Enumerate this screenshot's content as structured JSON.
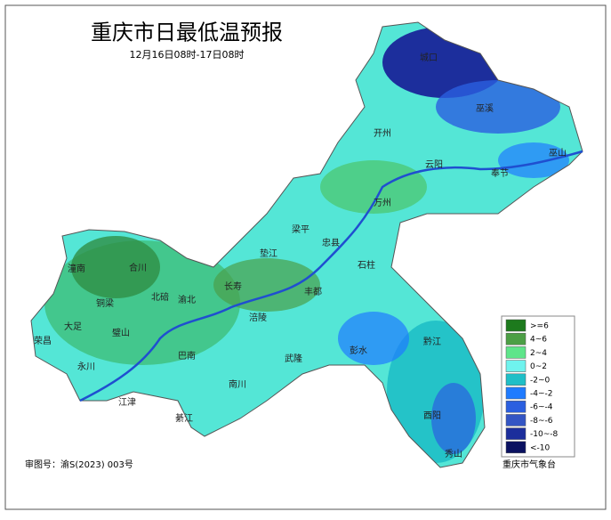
{
  "header": {
    "title": "重庆市日最低温预报",
    "subtitle": "12月16日08时-17日08时"
  },
  "places": [
    "城口",
    "巫溪",
    "开州",
    "云阳",
    "奉节",
    "巫山",
    "万州",
    "梁平",
    "忠县",
    "垫江",
    "石柱",
    "长寿",
    "丰都",
    "涪陵",
    "武隆",
    "彭水",
    "黔江",
    "酉阳",
    "秀山",
    "南川",
    "巴南",
    "江津",
    "綦江",
    "永川",
    "荣昌",
    "大足",
    "璧山",
    "铜梁",
    "潼南",
    "合川",
    "北碚",
    "渝北"
  ],
  "legend": [
    {
      "label": ">=6",
      "color": "#1d7a1d"
    },
    {
      "label": "4~6",
      "color": "#4c9f45"
    },
    {
      "label": "2~4",
      "color": "#5ee58a"
    },
    {
      "label": "0~2",
      "color": "#6ff3ee"
    },
    {
      "label": "-2~0",
      "color": "#1fbfc7"
    },
    {
      "label": "-4~-2",
      "color": "#1f7bff"
    },
    {
      "label": "-6~-4",
      "color": "#2b5fe0"
    },
    {
      "label": "-8~-6",
      "color": "#3355c4"
    },
    {
      "label": "-10~-8",
      "color": "#1c2e9c"
    },
    {
      "label": "<-10",
      "color": "#0a1160"
    }
  ],
  "footer": {
    "approval": "审图号：渝S(2023) 003号",
    "source": "重庆市气象台"
  }
}
